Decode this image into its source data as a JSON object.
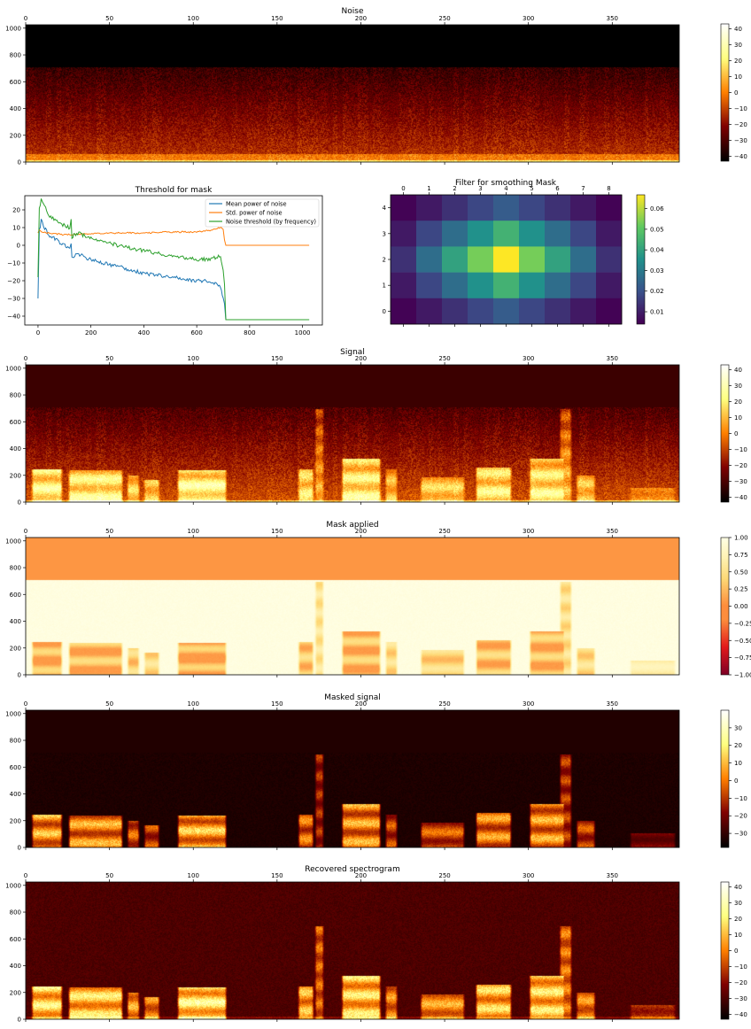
{
  "chart_data": [
    {
      "id": "noise",
      "type": "heatmap",
      "title": "Noise",
      "x_ticks": [
        0,
        50,
        100,
        150,
        200,
        250,
        300,
        350
      ],
      "y_ticks": [
        0,
        200,
        400,
        600,
        800,
        1000
      ],
      "xlim": [
        0,
        390
      ],
      "ylim": [
        0,
        1025
      ],
      "cmap": "afmhot",
      "colorbar": {
        "ticks": [
          "40",
          "30",
          "20",
          "10",
          "0",
          "−10",
          "−20",
          "−30",
          "−40"
        ],
        "values": [
          40,
          30,
          20,
          10,
          0,
          -10,
          -20,
          -30,
          -40
        ],
        "range": [
          -43,
          43
        ]
      },
      "content": {
        "cutoff_freq": 710,
        "above_level": -43,
        "style": "noise"
      }
    },
    {
      "id": "threshold",
      "type": "line",
      "title": "Threshold for mask",
      "x_ticks": [
        0,
        200,
        400,
        600,
        800,
        1000
      ],
      "y_ticks": [
        20,
        10,
        0,
        -10,
        -20,
        -30,
        -40
      ],
      "y_tick_labels": [
        "20",
        "10",
        "0",
        "−10",
        "−20",
        "−30",
        "−40"
      ],
      "xlim": [
        -50,
        1075
      ],
      "ylim": [
        -45,
        28
      ],
      "legend": {
        "placement": "top-right"
      },
      "series": [
        {
          "name": "Mean power of noise",
          "color": "#1f77b4",
          "x": [
            0,
            5,
            12,
            25,
            40,
            60,
            90,
            120,
            125,
            128,
            150,
            200,
            300,
            400,
            500,
            600,
            650,
            690,
            700,
            705,
            710,
            720,
            800,
            900,
            1025
          ],
          "y": [
            -30,
            8,
            14,
            10,
            6,
            4,
            1,
            -2,
            2,
            -7,
            -5,
            -8,
            -12,
            -16,
            -18,
            -20,
            -20,
            -23,
            -30,
            -33,
            -42,
            -42,
            -42,
            -42,
            -42
          ]
        },
        {
          "name": "Std. power of noise",
          "color": "#ff7f0e",
          "x": [
            0,
            5,
            10,
            30,
            100,
            200,
            300,
            400,
            500,
            600,
            650,
            690,
            700,
            705,
            710,
            720,
            800,
            900,
            1025
          ],
          "y": [
            7,
            9,
            8,
            7,
            6,
            6.5,
            7,
            7,
            7.5,
            7.5,
            8.5,
            10,
            9,
            3,
            0,
            0,
            0,
            0,
            0
          ]
        },
        {
          "name": "Noise threshold (by frequency)",
          "color": "#2ca02c",
          "x": [
            0,
            5,
            12,
            25,
            40,
            60,
            90,
            120,
            125,
            128,
            150,
            200,
            300,
            400,
            500,
            600,
            650,
            690,
            700,
            705,
            710,
            720,
            800,
            900,
            1025
          ],
          "y": [
            -18,
            20,
            26,
            23,
            17,
            15,
            12,
            10,
            14,
            5,
            7,
            4,
            0,
            -3,
            -6,
            -8,
            -8,
            -6,
            -13,
            -22,
            -42,
            -42,
            -42,
            -42,
            -42
          ]
        }
      ]
    },
    {
      "id": "filter",
      "type": "heatmap",
      "title": "Filter for smoothing Mask",
      "x_ticks": [
        0,
        1,
        2,
        3,
        4,
        5,
        6,
        7,
        8
      ],
      "y_ticks": [
        4,
        3,
        2,
        1,
        0
      ],
      "cmap": "viridis",
      "colorbar": {
        "ticks": [
          "0.06",
          "0.05",
          "0.04",
          "0.03",
          "0.02",
          "0.01"
        ],
        "values": [
          0.06,
          0.05,
          0.04,
          0.03,
          0.02,
          0.01
        ],
        "range": [
          0.004,
          0.0667
        ]
      },
      "matrix": [
        [
          0.0044,
          0.0088,
          0.0133,
          0.0177,
          0.0222,
          0.0177,
          0.0133,
          0.0088,
          0.0044
        ],
        [
          0.0088,
          0.0177,
          0.0266,
          0.0355,
          0.0444,
          0.0355,
          0.0266,
          0.0177,
          0.0088
        ],
        [
          0.0133,
          0.0266,
          0.04,
          0.0533,
          0.0667,
          0.0533,
          0.04,
          0.0266,
          0.0133
        ],
        [
          0.0088,
          0.0177,
          0.0266,
          0.0355,
          0.0444,
          0.0355,
          0.0266,
          0.0177,
          0.0088
        ],
        [
          0.0044,
          0.0088,
          0.0133,
          0.0177,
          0.0222,
          0.0177,
          0.0133,
          0.0088,
          0.0044
        ]
      ]
    },
    {
      "id": "signal",
      "type": "heatmap",
      "title": "Signal",
      "x_ticks": [
        0,
        50,
        100,
        150,
        200,
        250,
        300,
        350
      ],
      "y_ticks": [
        0,
        200,
        400,
        600,
        800,
        1000
      ],
      "xlim": [
        0,
        390
      ],
      "ylim": [
        0,
        1025
      ],
      "cmap": "afmhot",
      "colorbar": {
        "ticks": [
          "40",
          "30",
          "20",
          "10",
          "0",
          "−10",
          "−20",
          "−30",
          "−40"
        ],
        "values": [
          40,
          30,
          20,
          10,
          0,
          -10,
          -20,
          -30,
          -40
        ],
        "range": [
          -43,
          43
        ]
      },
      "content": {
        "cutoff_freq": 710,
        "above_level": -33,
        "style": "signal"
      }
    },
    {
      "id": "mask",
      "type": "heatmap",
      "title": "Mask applied",
      "x_ticks": [
        0,
        50,
        100,
        150,
        200,
        250,
        300,
        350
      ],
      "y_ticks": [
        0,
        200,
        400,
        600,
        800,
        1000
      ],
      "xlim": [
        0,
        390
      ],
      "ylim": [
        0,
        1025
      ],
      "cmap": "YlOrRd_r",
      "colorbar": {
        "ticks": [
          "1.00",
          "0.75",
          "0.50",
          "0.25",
          "0.00",
          "−0.25",
          "−0.50",
          "−0.75",
          "−1.00"
        ],
        "values": [
          1,
          0.75,
          0.5,
          0.25,
          0,
          -0.25,
          -0.5,
          -0.75,
          -1
        ],
        "range": [
          -1,
          1
        ]
      },
      "content": {
        "cutoff_freq": 710,
        "above_level": 0,
        "style": "mask"
      }
    },
    {
      "id": "masked",
      "type": "heatmap",
      "title": "Masked signal",
      "x_ticks": [
        0,
        50,
        100,
        150,
        200,
        250,
        300,
        350
      ],
      "y_ticks": [
        0,
        200,
        400,
        600,
        800,
        1000
      ],
      "xlim": [
        0,
        390
      ],
      "ylim": [
        0,
        1025
      ],
      "cmap": "afmhot",
      "colorbar": {
        "ticks": [
          "30",
          "20",
          "10",
          "0",
          "−10",
          "−20",
          "−30"
        ],
        "values": [
          30,
          20,
          10,
          0,
          -10,
          -20,
          -30
        ],
        "range": [
          -38,
          40
        ]
      },
      "content": {
        "cutoff_freq": 710,
        "above_level": -33,
        "style": "masked"
      }
    },
    {
      "id": "recovered",
      "type": "heatmap",
      "title": "Recovered spectrogram",
      "x_ticks": [
        0,
        50,
        100,
        150,
        200,
        250,
        300,
        350
      ],
      "y_ticks": [
        0,
        200,
        400,
        600,
        800,
        1000
      ],
      "xlim": [
        0,
        390
      ],
      "ylim": [
        0,
        1025
      ],
      "cmap": "afmhot",
      "colorbar": {
        "ticks": [
          "40",
          "30",
          "20",
          "10",
          "0",
          "−10",
          "−20",
          "−30",
          "−40"
        ],
        "values": [
          40,
          30,
          20,
          10,
          0,
          -10,
          -20,
          -30,
          -40
        ],
        "range": [
          -43,
          43
        ]
      },
      "content": {
        "cutoff_freq": 1025,
        "above_level": -33,
        "style": "recovered"
      }
    }
  ],
  "speech_events": [
    {
      "t0": 3,
      "t1": 22,
      "f1": 250,
      "strength": 0.9
    },
    {
      "t0": 25,
      "t1": 58,
      "f1": 240,
      "strength": 0.85
    },
    {
      "t0": 60,
      "t1": 68,
      "f1": 200,
      "strength": 0.7
    },
    {
      "t0": 70,
      "t1": 80,
      "f1": 170,
      "strength": 0.6
    },
    {
      "t0": 90,
      "t1": 120,
      "f1": 240,
      "strength": 0.95
    },
    {
      "t0": 162,
      "t1": 172,
      "f1": 250,
      "strength": 0.75
    },
    {
      "t0": 172,
      "t1": 178,
      "f1": 700,
      "strength": 0.5
    },
    {
      "t0": 188,
      "t1": 212,
      "f1": 330,
      "strength": 0.85
    },
    {
      "t0": 214,
      "t1": 222,
      "f1": 250,
      "strength": 0.6
    },
    {
      "t0": 235,
      "t1": 262,
      "f1": 190,
      "strength": 0.65
    },
    {
      "t0": 268,
      "t1": 290,
      "f1": 260,
      "strength": 0.8
    },
    {
      "t0": 300,
      "t1": 322,
      "f1": 330,
      "strength": 0.85
    },
    {
      "t0": 318,
      "t1": 326,
      "f1": 700,
      "strength": 0.55
    },
    {
      "t0": 328,
      "t1": 340,
      "f1": 200,
      "strength": 0.6
    },
    {
      "t0": 360,
      "t1": 388,
      "f1": 110,
      "strength": 0.35
    }
  ]
}
